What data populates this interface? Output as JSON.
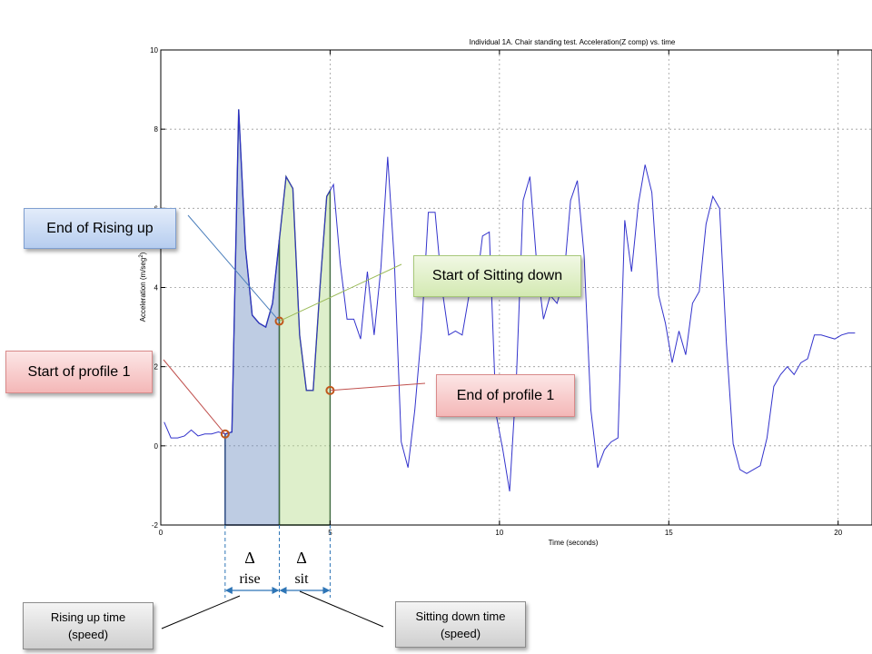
{
  "chart_data": {
    "type": "line",
    "title": "Individual 1A. Chair standing test. Acceleration(Z comp) vs. time",
    "xlabel": "Time (seconds)",
    "ylabel": "Acceleration (m/seg",
    "ylabel_sup": "2",
    "ylabel_close": ")",
    "xlim": [
      0,
      21
    ],
    "ylim": [
      -2,
      10
    ],
    "xticks": [
      "0",
      "5",
      "10",
      "15",
      "20"
    ],
    "xtick_values": [
      0,
      5,
      10,
      15,
      20
    ],
    "yticks": [
      "-2",
      "0",
      "2",
      "4",
      "6",
      "8",
      "10"
    ],
    "ytick_values": [
      -2,
      0,
      2,
      4,
      6,
      8,
      10
    ],
    "grid": true,
    "series": [
      {
        "color": "#3333cc",
        "x": [
          0.1,
          0.3,
          0.5,
          0.7,
          0.9,
          1.1,
          1.3,
          1.5,
          1.7,
          1.9,
          2.1,
          2.3,
          2.5,
          2.7,
          2.9,
          3.1,
          3.3,
          3.5,
          3.7,
          3.9,
          4.1,
          4.3,
          4.5,
          4.7,
          4.9,
          5.1,
          5.3,
          5.5,
          5.7,
          5.9,
          6.1,
          6.3,
          6.5,
          6.7,
          6.9,
          7.1,
          7.3,
          7.5,
          7.7,
          7.9,
          8.1,
          8.3,
          8.5,
          8.7,
          8.9,
          9.1,
          9.3,
          9.5,
          9.7,
          9.9,
          10.1,
          10.3,
          10.5,
          10.7,
          10.9,
          11.1,
          11.3,
          11.5,
          11.7,
          11.9,
          12.1,
          12.3,
          12.5,
          12.7,
          12.9,
          13.1,
          13.3,
          13.5,
          13.7,
          13.9,
          14.1,
          14.3,
          14.5,
          14.7,
          14.9,
          15.1,
          15.3,
          15.5,
          15.7,
          15.9,
          16.1,
          16.3,
          16.5,
          16.7,
          16.9,
          17.1,
          17.3,
          17.5,
          17.7,
          17.9,
          18.1,
          18.3,
          18.5,
          18.7,
          18.9,
          19.1,
          19.3,
          19.5,
          19.7,
          19.9,
          20.1,
          20.3,
          20.5
        ],
        "y": [
          0.6,
          0.2,
          0.2,
          0.25,
          0.4,
          0.25,
          0.3,
          0.3,
          0.35,
          0.3,
          0.35,
          8.5,
          5.0,
          3.3,
          3.1,
          3.0,
          3.6,
          5.2,
          6.8,
          6.5,
          2.8,
          1.4,
          1.4,
          4.0,
          6.3,
          6.6,
          4.6,
          3.2,
          3.2,
          2.7,
          4.4,
          2.8,
          4.5,
          7.3,
          4.6,
          0.1,
          -0.55,
          0.9,
          2.9,
          5.9,
          5.9,
          4.0,
          2.8,
          2.9,
          2.8,
          3.8,
          3.9,
          5.3,
          5.4,
          0.8,
          -0.1,
          -1.15,
          1.7,
          6.2,
          6.8,
          4.6,
          3.2,
          3.8,
          3.6,
          4.2,
          6.2,
          6.7,
          4.8,
          0.9,
          -0.55,
          -0.1,
          0.1,
          0.2,
          5.7,
          4.4,
          6.1,
          7.1,
          6.4,
          3.8,
          3.1,
          2.1,
          2.9,
          2.3,
          3.6,
          3.9,
          5.6,
          6.3,
          6.0,
          2.6,
          0.05,
          -0.6,
          -0.7,
          -0.6,
          -0.5,
          0.2,
          1.5,
          1.8,
          2.0,
          1.8,
          2.1,
          2.2,
          2.8,
          2.8,
          2.75,
          2.7,
          2.8,
          2.85,
          2.85
        ]
      }
    ],
    "shaded_regions": [
      {
        "x_start": 1.9,
        "x_end": 3.5,
        "color": "#6f8fc0",
        "border": "#1f3f7a",
        "label": "rise"
      },
      {
        "x_start": 3.5,
        "x_end": 5.0,
        "color": "#b5dc8c",
        "border": "#3f6a3f",
        "label": "sit"
      }
    ],
    "markers": [
      {
        "x": 1.9,
        "y": 0.3
      },
      {
        "x": 3.5,
        "y": 3.15
      },
      {
        "x": 5.0,
        "y": 1.4
      }
    ],
    "delta_symbol": "Δ"
  },
  "annotations": {
    "end_rising_up": "End of Rising up",
    "start_sitting_down": "Start of Sitting down",
    "start_profile": "Start of profile 1",
    "end_profile": "End of profile 1",
    "rising_time_line1": "Rising up time",
    "rising_time_line2": "(speed)",
    "sitting_time_line1": "Sitting down time",
    "sitting_time_line2": "(speed)",
    "delta_rise_label": "rise",
    "delta_sit_label": "sit"
  }
}
